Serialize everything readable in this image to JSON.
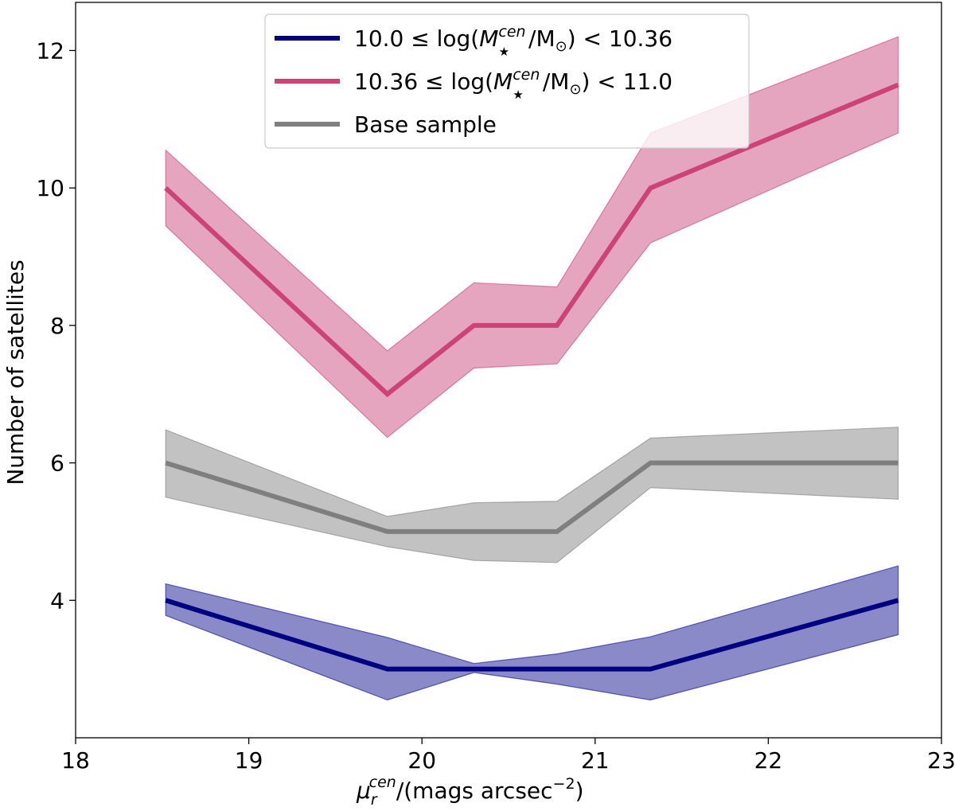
{
  "chart_data": {
    "type": "line",
    "title": "",
    "xlabel": "μ_r^cen/(mags arcsec^-2)",
    "ylabel": "Number of satellites",
    "xlim": [
      18,
      23
    ],
    "ylim": [
      2.0,
      12.7
    ],
    "xticks": [
      18,
      19,
      20,
      21,
      22,
      23
    ],
    "yticks": [
      4,
      6,
      8,
      10,
      12
    ],
    "legend_position": "top-center",
    "series": [
      {
        "name": "10.0 ≤ log(M★cen/M⊙) < 10.36",
        "legend_parts": {
          "prefix": "10.0 ≤ log(",
          "m": "M",
          "sup": "cen",
          "sub": "★",
          "mid": "/M",
          "sun": "⊙",
          "suffix": ") < 10.36"
        },
        "color": "#000080",
        "fill_color": "#0b0b8f",
        "x": [
          18.52,
          19.8,
          20.3,
          20.78,
          21.32,
          22.75
        ],
        "y": [
          4,
          3,
          3,
          3,
          3,
          4
        ],
        "y_lower": [
          3.78,
          2.55,
          2.95,
          2.78,
          2.55,
          3.5
        ],
        "y_upper": [
          4.24,
          3.46,
          3.08,
          3.22,
          3.47,
          4.5
        ]
      },
      {
        "name": "10.36 ≤ log(M★cen/M⊙) < 11.0",
        "legend_parts": {
          "prefix": "10.36 ≤ log(",
          "m": "M",
          "sup": "cen",
          "sub": "★",
          "mid": "/M",
          "sun": "⊙",
          "suffix": ") < 11.0"
        },
        "color": "#cc4477",
        "fill_color": "#c94277",
        "x": [
          18.52,
          19.8,
          20.3,
          20.78,
          21.32,
          22.75
        ],
        "y": [
          10,
          7,
          8,
          8,
          10,
          11.5
        ],
        "y_lower": [
          9.45,
          6.37,
          7.38,
          7.44,
          9.2,
          10.8
        ],
        "y_upper": [
          10.55,
          7.63,
          8.62,
          8.56,
          10.8,
          12.2
        ]
      },
      {
        "name": "Base sample",
        "color": "#7f7f7f",
        "fill_color": "#808080",
        "x": [
          18.52,
          19.8,
          20.3,
          20.78,
          21.32,
          22.75
        ],
        "y": [
          6,
          5,
          5,
          5,
          6,
          6
        ],
        "y_lower": [
          5.5,
          4.78,
          4.58,
          4.55,
          5.64,
          5.47
        ],
        "y_upper": [
          6.48,
          5.22,
          5.42,
          5.44,
          6.36,
          6.52
        ]
      }
    ]
  },
  "axis_labels": {
    "ylabel": "Number of satellites",
    "xlabel_mu": "μ",
    "xlabel_sub": "r",
    "xlabel_sup": "cen",
    "xlabel_units": "/(mags arcsec",
    "xlabel_exp": "−2",
    "xlabel_close": ")"
  }
}
